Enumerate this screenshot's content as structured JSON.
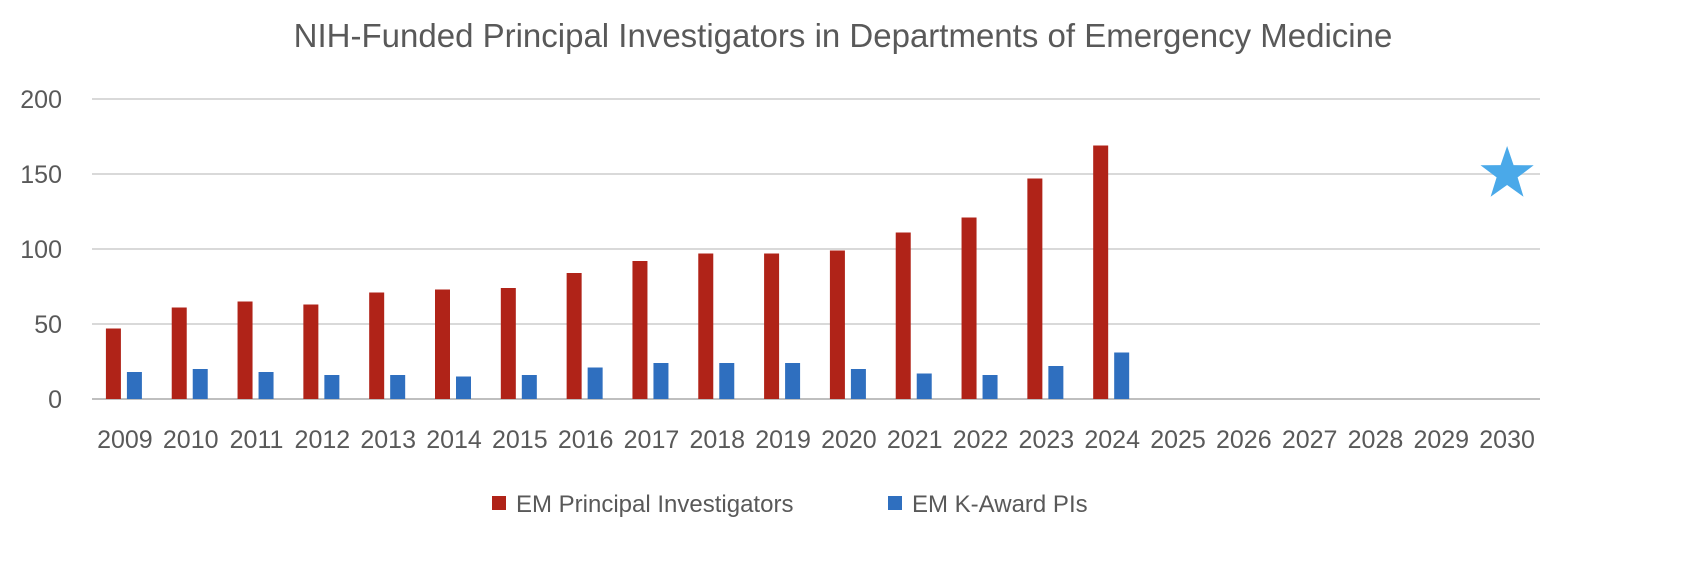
{
  "chart_data": {
    "type": "bar",
    "title": "NIH-Funded Principal Investigators in Departments of Emergency Medicine",
    "xlabel": "",
    "ylabel": "",
    "ylim": [
      0,
      200
    ],
    "yticks": [
      "0",
      "50",
      "100",
      "150",
      "200"
    ],
    "grid": true,
    "legend_position": "bottom",
    "categories": [
      "2009",
      "2010",
      "2011",
      "2012",
      "2013",
      "2014",
      "2015",
      "2016",
      "2017",
      "2018",
      "2019",
      "2020",
      "2021",
      "2022",
      "2023",
      "2024",
      "2025",
      "2026",
      "2027",
      "2028",
      "2029",
      "2030"
    ],
    "series": [
      {
        "name": "EM Principal Investigators",
        "color": "#B02318",
        "values": [
          47,
          61,
          65,
          63,
          71,
          73,
          74,
          84,
          92,
          97,
          97,
          99,
          111,
          121,
          147,
          169,
          null,
          null,
          null,
          null,
          null,
          null
        ]
      },
      {
        "name": "EM K-Award PIs",
        "color": "#2F6FBF",
        "values": [
          18,
          20,
          18,
          16,
          16,
          15,
          16,
          21,
          24,
          24,
          24,
          20,
          17,
          16,
          22,
          31,
          null,
          null,
          null,
          null,
          null,
          null
        ]
      }
    ],
    "annotations": [
      {
        "type": "star-marker",
        "x": "2030",
        "y": 150,
        "color": "#4AA9E9"
      }
    ]
  }
}
